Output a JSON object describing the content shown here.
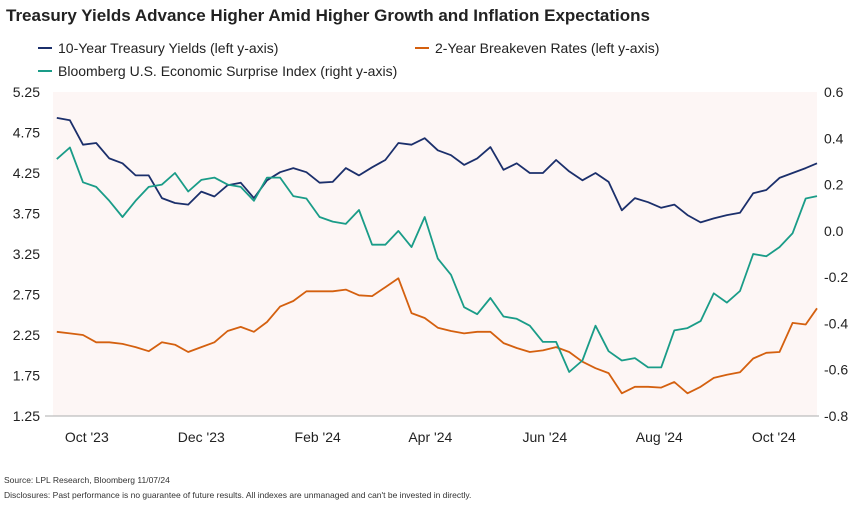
{
  "chart_data": {
    "type": "line",
    "title": "Treasury Yields Advance Higher Amid Higher Growth and Inflation Expectations",
    "source": "Source: LPL Research, Bloomberg 11/07/24",
    "disclosure": "Disclosures: Past performance is no guarantee of future results. All indexes are unmanaged and can't be invested in directly.",
    "legend_placement": "top-left",
    "grid": false,
    "x": [
      "2023-09-29",
      "2023-10-06",
      "2023-10-13",
      "2023-10-20",
      "2023-10-27",
      "2023-11-03",
      "2023-11-10",
      "2023-11-17",
      "2023-11-24",
      "2023-12-01",
      "2023-12-08",
      "2023-12-15",
      "2023-12-22",
      "2023-12-29",
      "2024-01-05",
      "2024-01-12",
      "2024-01-19",
      "2024-01-26",
      "2024-02-02",
      "2024-02-09",
      "2024-02-16",
      "2024-02-23",
      "2024-03-01",
      "2024-03-08",
      "2024-03-15",
      "2024-03-22",
      "2024-03-29",
      "2024-04-05",
      "2024-04-12",
      "2024-04-19",
      "2024-04-26",
      "2024-05-03",
      "2024-05-10",
      "2024-05-17",
      "2024-05-24",
      "2024-05-31",
      "2024-06-07",
      "2024-06-14",
      "2024-06-21",
      "2024-06-28",
      "2024-07-05",
      "2024-07-12",
      "2024-07-19",
      "2024-07-26",
      "2024-08-02",
      "2024-08-09",
      "2024-08-16",
      "2024-08-23",
      "2024-08-30",
      "2024-09-06",
      "2024-09-13",
      "2024-09-20",
      "2024-09-27",
      "2024-10-04",
      "2024-10-11",
      "2024-10-18",
      "2024-10-25",
      "2024-11-01",
      "2024-11-07"
    ],
    "x_ticks": [
      {
        "date": "2023-10-15",
        "label": "Oct '23"
      },
      {
        "date": "2023-12-15",
        "label": "Dec '23"
      },
      {
        "date": "2024-02-15",
        "label": "Feb '24"
      },
      {
        "date": "2024-04-15",
        "label": "Apr '24"
      },
      {
        "date": "2024-06-15",
        "label": "Jun '24"
      },
      {
        "date": "2024-08-15",
        "label": "Aug '24"
      },
      {
        "date": "2024-10-15",
        "label": "Oct '24"
      }
    ],
    "xlim": [
      "2023-09-27",
      "2024-11-07"
    ],
    "y_left": {
      "lim": [
        1.25,
        5.25
      ],
      "ticks": [
        "5.25",
        "4.75",
        "4.25",
        "3.75",
        "3.25",
        "2.75",
        "2.25",
        "1.75",
        "1.25"
      ]
    },
    "y_right": {
      "lim": [
        -0.8,
        0.6
      ],
      "ticks": [
        "0.6",
        "0.4",
        "0.2",
        "0.0",
        "-0.2",
        "-0.4",
        "-0.6",
        "-0.8"
      ]
    },
    "series": [
      {
        "name": "10-Year Treasury Yields (left y-axis)",
        "axis": "left",
        "color": "#1b2f6b",
        "values": [
          4.93,
          4.9,
          4.6,
          4.62,
          4.43,
          4.37,
          4.22,
          4.22,
          3.94,
          3.88,
          3.86,
          4.02,
          3.96,
          4.1,
          4.13,
          3.94,
          4.16,
          4.26,
          4.31,
          4.26,
          4.13,
          4.14,
          4.31,
          4.22,
          4.32,
          4.41,
          4.62,
          4.6,
          4.68,
          4.53,
          4.47,
          4.35,
          4.43,
          4.57,
          4.29,
          4.37,
          4.25,
          4.25,
          4.41,
          4.27,
          4.16,
          4.25,
          4.14,
          3.79,
          3.94,
          3.89,
          3.82,
          3.86,
          3.73,
          3.64,
          3.69,
          3.73,
          3.76,
          4.0,
          4.04,
          4.19,
          4.25,
          4.31,
          4.37
        ]
      },
      {
        "name": "2-Year Breakeven Rates (left y-axis)",
        "axis": "left",
        "color": "#d4600f",
        "values": [
          2.29,
          2.27,
          2.25,
          2.16,
          2.16,
          2.14,
          2.1,
          2.05,
          2.16,
          2.13,
          2.04,
          2.1,
          2.16,
          2.3,
          2.35,
          2.29,
          2.41,
          2.6,
          2.67,
          2.79,
          2.79,
          2.79,
          2.81,
          2.74,
          2.73,
          2.84,
          2.95,
          2.52,
          2.46,
          2.34,
          2.3,
          2.27,
          2.29,
          2.29,
          2.15,
          2.09,
          2.04,
          2.06,
          2.1,
          2.04,
          1.92,
          1.84,
          1.78,
          1.53,
          1.61,
          1.61,
          1.6,
          1.67,
          1.53,
          1.61,
          1.72,
          1.76,
          1.79,
          1.96,
          2.03,
          2.04,
          2.4,
          2.38,
          2.58
        ]
      },
      {
        "name": "Bloomberg U.S. Economic Surprise Index (right y-axis)",
        "axis": "right",
        "color": "#1a9c88",
        "values": [
          0.31,
          0.36,
          0.21,
          0.19,
          0.13,
          0.06,
          0.13,
          0.19,
          0.2,
          0.25,
          0.17,
          0.22,
          0.23,
          0.2,
          0.19,
          0.13,
          0.23,
          0.23,
          0.15,
          0.14,
          0.06,
          0.04,
          0.03,
          0.09,
          -0.06,
          -0.06,
          0.0,
          -0.07,
          0.06,
          -0.12,
          -0.19,
          -0.33,
          -0.36,
          -0.29,
          -0.37,
          -0.38,
          -0.41,
          -0.48,
          -0.48,
          -0.61,
          -0.56,
          -0.41,
          -0.52,
          -0.56,
          -0.55,
          -0.59,
          -0.59,
          -0.43,
          -0.42,
          -0.39,
          -0.27,
          -0.31,
          -0.26,
          -0.1,
          -0.11,
          -0.07,
          -0.01,
          0.14,
          0.15
        ]
      }
    ],
    "colors": {
      "plot_background": "#fdf6f5",
      "axis": "#bdbdbd",
      "text": "#222222"
    }
  }
}
